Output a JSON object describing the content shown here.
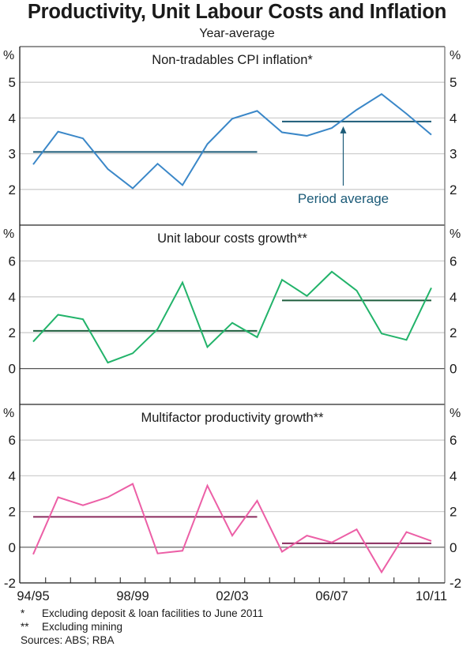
{
  "chart_data": {
    "type": "line",
    "title": "Productivity, Unit Labour Costs and Inflation",
    "subtitle": "Year-average",
    "x": [
      "94/95",
      "95/96",
      "96/97",
      "97/98",
      "98/99",
      "99/00",
      "00/01",
      "01/02",
      "02/03",
      "03/04",
      "04/05",
      "05/06",
      "06/07",
      "07/08",
      "08/09",
      "09/10",
      "10/11"
    ],
    "x_tick_labels": [
      "94/95",
      "98/99",
      "02/03",
      "06/07",
      "10/11"
    ],
    "panels": [
      {
        "title": "Non-tradables CPI inflation*",
        "unit_label": "%",
        "ylim": [
          1,
          6
        ],
        "y_ticks": [
          2,
          3,
          4,
          5
        ],
        "color": "#3a87c8",
        "avg_color": "#1c5b78",
        "values": [
          2.7,
          3.62,
          3.43,
          2.57,
          2.03,
          2.72,
          2.12,
          3.27,
          3.98,
          4.2,
          3.6,
          3.5,
          3.72,
          4.23,
          4.67,
          4.12,
          3.53
        ],
        "period_averages": [
          {
            "from": "94/95",
            "to": "03/04",
            "value": 3.05
          },
          {
            "from": "04/05",
            "to": "10/11",
            "value": 3.9
          }
        ],
        "annotation": {
          "text": "Period average",
          "color": "#1c5b78",
          "points_to_period": 1,
          "at_x": "07/08"
        }
      },
      {
        "title": "Unit labour costs growth**",
        "unit_label": "%",
        "ylim": [
          -2,
          8
        ],
        "y_ticks": [
          0,
          2,
          4,
          6
        ],
        "color": "#22b36a",
        "avg_color": "#1f5e3e",
        "values": [
          1.5,
          3.0,
          2.75,
          0.33,
          0.85,
          2.2,
          4.8,
          1.2,
          2.55,
          1.75,
          4.95,
          4.05,
          5.4,
          4.35,
          1.95,
          1.6,
          4.5
        ],
        "period_averages": [
          {
            "from": "94/95",
            "to": "03/04",
            "value": 2.1
          },
          {
            "from": "04/05",
            "to": "10/11",
            "value": 3.8
          }
        ]
      },
      {
        "title": "Multifactor productivity growth**",
        "unit_label": "%",
        "ylim": [
          -2,
          8
        ],
        "y_ticks": [
          -2,
          0,
          2,
          4,
          6
        ],
        "color": "#ec5fa6",
        "avg_color": "#8a2c5e",
        "values": [
          -0.4,
          2.8,
          2.35,
          2.8,
          3.55,
          -0.35,
          -0.2,
          3.45,
          0.65,
          2.6,
          -0.25,
          0.65,
          0.27,
          1.0,
          -1.4,
          0.85,
          0.35
        ],
        "period_averages": [
          {
            "from": "94/95",
            "to": "03/04",
            "value": 1.7
          },
          {
            "from": "04/05",
            "to": "10/11",
            "value": 0.22
          }
        ]
      }
    ],
    "grid": true,
    "legend": "none"
  },
  "notes": [
    {
      "mark": "*",
      "text": "Excluding deposit & loan facilities to June 2011"
    },
    {
      "mark": "**",
      "text": "Excluding mining"
    }
  ],
  "sources": "Sources: ABS; RBA"
}
